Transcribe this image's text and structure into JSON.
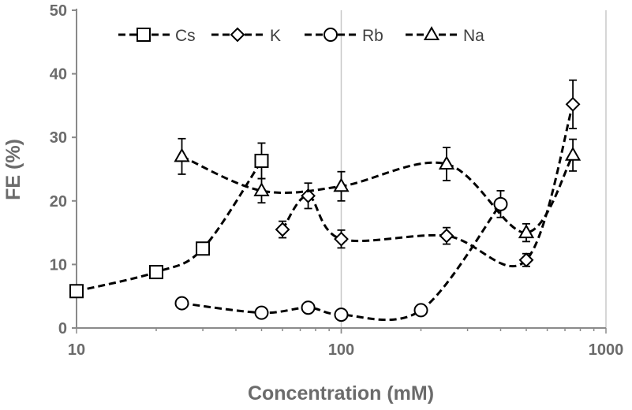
{
  "chart_data": {
    "type": "scatter",
    "xlabel": "Concentration (mM)",
    "ylabel": "FE (%)",
    "xscale": "log",
    "xlim": [
      10,
      1000
    ],
    "ylim": [
      0,
      50
    ],
    "x_ticks": [
      "10",
      "100",
      "1000"
    ],
    "y_ticks": [
      "0",
      "10",
      "20",
      "30",
      "40",
      "50"
    ],
    "grid": "vertical gridlines at 100 and 1000",
    "legend_position": "top",
    "line_style": "dashed smoothed curves",
    "colors": {
      "series": "#000000",
      "axis_text": "#6b6b6b",
      "grid": "#c8c8c8"
    },
    "series": [
      {
        "name": "Cs",
        "marker": "square",
        "x": [
          10,
          20,
          30,
          50
        ],
        "y": [
          5.8,
          8.8,
          12.5,
          26.3
        ],
        "err": [
          0.5,
          0.9,
          0.9,
          2.8
        ]
      },
      {
        "name": "K",
        "marker": "diamond",
        "x": [
          60,
          75,
          100,
          250,
          500,
          750
        ],
        "y": [
          15.5,
          20.8,
          14.0,
          14.5,
          10.7,
          35.2
        ],
        "err": [
          1.3,
          2.0,
          1.4,
          1.3,
          1.0,
          3.8
        ]
      },
      {
        "name": "Rb",
        "marker": "circle",
        "x": [
          25,
          50,
          75,
          100,
          200,
          400
        ],
        "y": [
          3.9,
          2.4,
          3.2,
          2.1,
          2.8,
          19.5
        ],
        "err": [
          0.5,
          0.4,
          0.5,
          0.4,
          0.5,
          2.1
        ]
      },
      {
        "name": "Na",
        "marker": "triangle",
        "x": [
          25,
          50,
          100,
          250,
          500,
          750
        ],
        "y": [
          27.0,
          21.6,
          22.3,
          25.8,
          15.0,
          27.2
        ],
        "err": [
          2.8,
          1.9,
          2.3,
          2.6,
          1.4,
          2.5
        ]
      }
    ]
  }
}
